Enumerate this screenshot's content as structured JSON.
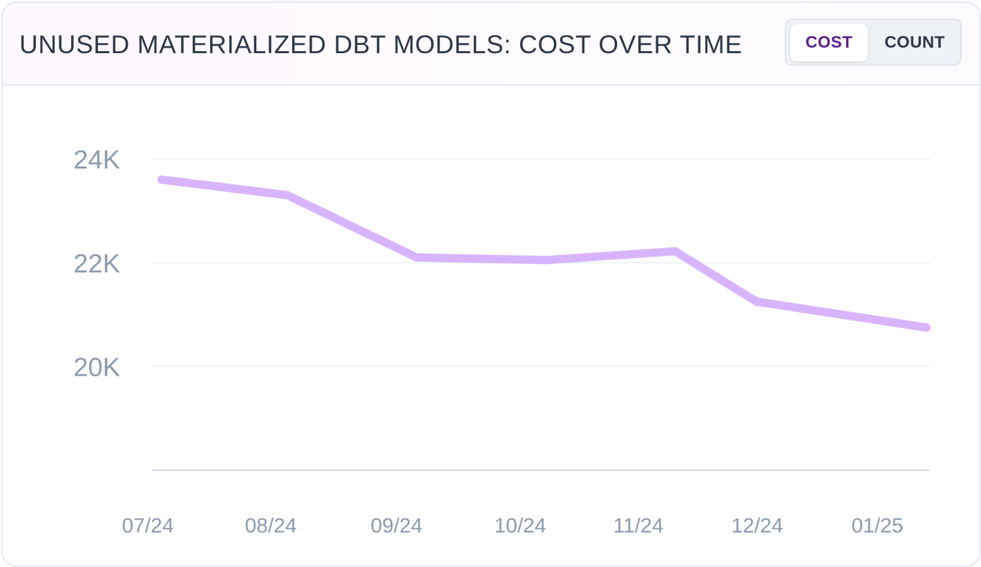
{
  "header": {
    "title": "UNUSED MATERIALIZED DBT MODELS: COST OVER TIME",
    "toggle": {
      "options": [
        "COST",
        "COUNT"
      ],
      "active": "COST"
    }
  },
  "chart_data": {
    "type": "line",
    "title": "UNUSED MATERIALIZED DBT MODELS: COST OVER TIME",
    "xlabel": "",
    "ylabel": "",
    "x_tick_labels": [
      "07/24",
      "08/24",
      "09/24",
      "10/24",
      "11/24",
      "12/24",
      "01/25"
    ],
    "y_ticks": [
      20000,
      22000,
      24000
    ],
    "y_tick_labels": [
      "20K",
      "22K",
      "24K"
    ],
    "ylim": [
      18000,
      24000
    ],
    "grid": true,
    "series": [
      {
        "color": "#d8b4fe",
        "points": [
          {
            "x": "2024-07-01",
            "y": 23600
          },
          {
            "x": "2024-08-04",
            "y": 23300
          },
          {
            "x": "2024-09-08",
            "y": 22100
          },
          {
            "x": "2024-10-13",
            "y": 22050
          },
          {
            "x": "2024-11-17",
            "y": 22220
          },
          {
            "x": "2024-12-09",
            "y": 21250
          },
          {
            "x": "2025-01-24",
            "y": 20750
          }
        ]
      }
    ]
  }
}
